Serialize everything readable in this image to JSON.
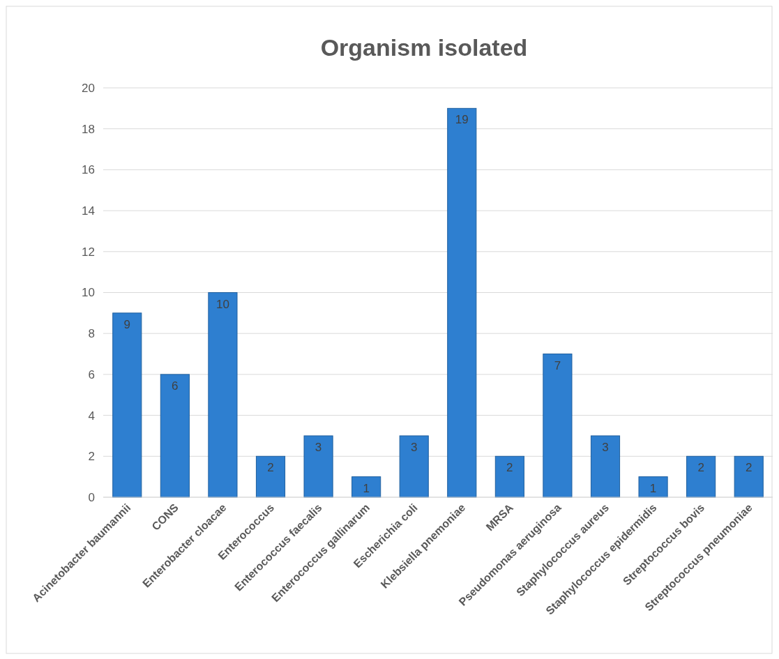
{
  "chart_data": {
    "type": "bar",
    "title": "Organism isolated",
    "categories": [
      "Acinetobacter baumannii",
      "CONS",
      "Enterobacter cloacae",
      "Enterococcus",
      "Enterococcus faecalis",
      "Enterococcus gallinarum",
      "Escherichia coli",
      "Klebsiella pnemoniae",
      "MRSA",
      "Pseudomonas aeruginosa",
      "Staphylococcus aureus",
      "Staphylococcus epidermidis",
      "Streptococcus bovis",
      "Streptococcus pneumoniae"
    ],
    "values": [
      9,
      6,
      10,
      2,
      3,
      1,
      3,
      19,
      2,
      7,
      3,
      1,
      2,
      2
    ],
    "color": "#2e7fd0",
    "ylim": [
      0,
      20
    ],
    "yticks": [
      0,
      2,
      4,
      6,
      8,
      10,
      12,
      14,
      16,
      18,
      20
    ],
    "grid": "y",
    "data_labels": true
  }
}
